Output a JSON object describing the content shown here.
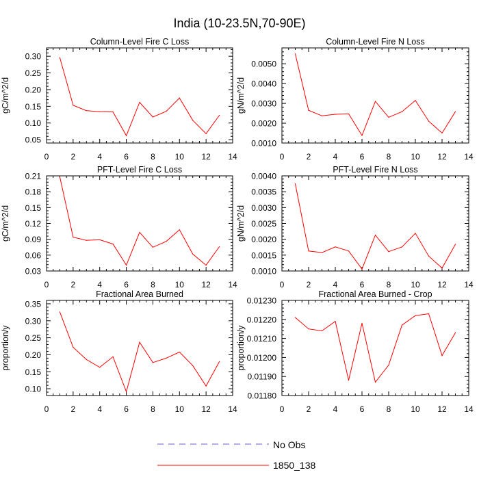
{
  "title": "India (10-23.5N,70-90E)",
  "legend": [
    {
      "label": "No Obs",
      "color": "#5b5bd6",
      "dashed": true
    },
    {
      "label": "1850_138",
      "color": "#ff0000",
      "dashed": false
    }
  ],
  "chart_data": [
    {
      "type": "line",
      "title": "Column-Level Fire C Loss",
      "ylabel": "gC/m^2/d",
      "xlim": [
        0,
        14
      ],
      "ylim": [
        0.04,
        0.325
      ],
      "xticks": [
        "0",
        "2",
        "4",
        "6",
        "8",
        "10",
        "12",
        "14"
      ],
      "yticks": [
        "0.05",
        "0.10",
        "0.15",
        "0.20",
        "0.25",
        "0.30"
      ],
      "series": [
        {
          "name": "1850_138",
          "color": "#ff0000",
          "x": [
            1,
            2,
            3,
            4,
            5,
            6,
            7,
            8,
            9,
            10,
            11,
            12,
            13
          ],
          "y": [
            0.296,
            0.153,
            0.137,
            0.134,
            0.133,
            0.062,
            0.162,
            0.118,
            0.135,
            0.175,
            0.108,
            0.068,
            0.123
          ]
        }
      ]
    },
    {
      "type": "line",
      "title": "Column-Level Fire N Loss",
      "ylabel": "gN/m^2/d",
      "xlim": [
        0,
        14
      ],
      "ylim": [
        0.001,
        0.0058
      ],
      "xticks": [
        "0",
        "2",
        "4",
        "6",
        "8",
        "10",
        "12",
        "14"
      ],
      "yticks": [
        "0.0010",
        "0.0020",
        "0.0030",
        "0.0040",
        "0.0050"
      ],
      "series": [
        {
          "name": "1850_138",
          "color": "#ff0000",
          "x": [
            1,
            2,
            3,
            4,
            5,
            6,
            7,
            8,
            9,
            10,
            11,
            12,
            13
          ],
          "y": [
            0.0055,
            0.00265,
            0.00237,
            0.00245,
            0.00247,
            0.00138,
            0.0031,
            0.0023,
            0.00258,
            0.00315,
            0.0021,
            0.0015,
            0.00258
          ]
        }
      ]
    },
    {
      "type": "line",
      "title": "PFT-Level Fire C Loss",
      "ylabel": "gC/m^2/d",
      "xlim": [
        0,
        14
      ],
      "ylim": [
        0.03,
        0.21
      ],
      "xticks": [
        "0",
        "2",
        "4",
        "6",
        "8",
        "10",
        "12",
        "14"
      ],
      "yticks": [
        "0.03",
        "0.06",
        "0.09",
        "0.12",
        "0.15",
        "0.18",
        "0.21"
      ],
      "series": [
        {
          "name": "1850_138",
          "color": "#ff0000",
          "x": [
            1,
            2,
            3,
            4,
            5,
            6,
            7,
            8,
            9,
            10,
            11,
            12,
            13
          ],
          "y": [
            0.208,
            0.094,
            0.088,
            0.089,
            0.081,
            0.041,
            0.103,
            0.075,
            0.086,
            0.108,
            0.062,
            0.041,
            0.076
          ]
        }
      ]
    },
    {
      "type": "line",
      "title": "PFT-Level Fire N Loss",
      "ylabel": "gN/m^2/d",
      "xlim": [
        0,
        14
      ],
      "ylim": [
        0.001,
        0.004
      ],
      "xticks": [
        "0",
        "2",
        "4",
        "6",
        "8",
        "10",
        "12",
        "14"
      ],
      "yticks": [
        "0.0010",
        "0.0015",
        "0.0020",
        "0.0025",
        "0.0030",
        "0.0035",
        "0.0040"
      ],
      "series": [
        {
          "name": "1850_138",
          "color": "#ff0000",
          "x": [
            1,
            2,
            3,
            4,
            5,
            6,
            7,
            8,
            9,
            10,
            11,
            12,
            13
          ],
          "y": [
            0.00375,
            0.00163,
            0.00158,
            0.00176,
            0.00163,
            0.00106,
            0.00213,
            0.00161,
            0.00176,
            0.00219,
            0.00147,
            0.00109,
            0.00184
          ]
        }
      ]
    },
    {
      "type": "line",
      "title": "Fractional Area Burned",
      "ylabel": "proportion/y",
      "xlim": [
        0,
        14
      ],
      "ylim": [
        0.08,
        0.36
      ],
      "xticks": [
        "0",
        "2",
        "4",
        "6",
        "8",
        "10",
        "12",
        "14"
      ],
      "yticks": [
        "0.10",
        "0.15",
        "0.20",
        "0.25",
        "0.30",
        "0.35"
      ],
      "series": [
        {
          "name": "1850_138",
          "color": "#ff0000",
          "x": [
            1,
            2,
            3,
            4,
            5,
            6,
            7,
            8,
            9,
            10,
            11,
            12,
            13
          ],
          "y": [
            0.326,
            0.222,
            0.186,
            0.163,
            0.194,
            0.091,
            0.237,
            0.177,
            0.19,
            0.208,
            0.168,
            0.108,
            0.18
          ]
        }
      ]
    },
    {
      "type": "line",
      "title": "Fractional Area Burned - Crop",
      "ylabel": "proportion/y",
      "xlim": [
        0,
        14
      ],
      "ylim": [
        0.0118,
        0.0123
      ],
      "xticks": [
        "0",
        "2",
        "4",
        "6",
        "8",
        "10",
        "12",
        "14"
      ],
      "yticks": [
        "0.01180",
        "0.01190",
        "0.01200",
        "0.01210",
        "0.01220",
        "0.01230"
      ],
      "series": [
        {
          "name": "1850_138",
          "color": "#ff0000",
          "x": [
            1,
            2,
            3,
            4,
            5,
            6,
            7,
            8,
            9,
            10,
            11,
            12,
            13
          ],
          "y": [
            0.01221,
            0.01215,
            0.01214,
            0.01219,
            0.01188,
            0.01218,
            0.01187,
            0.01196,
            0.01217,
            0.01222,
            0.01223,
            0.01201,
            0.01213
          ]
        }
      ]
    }
  ]
}
